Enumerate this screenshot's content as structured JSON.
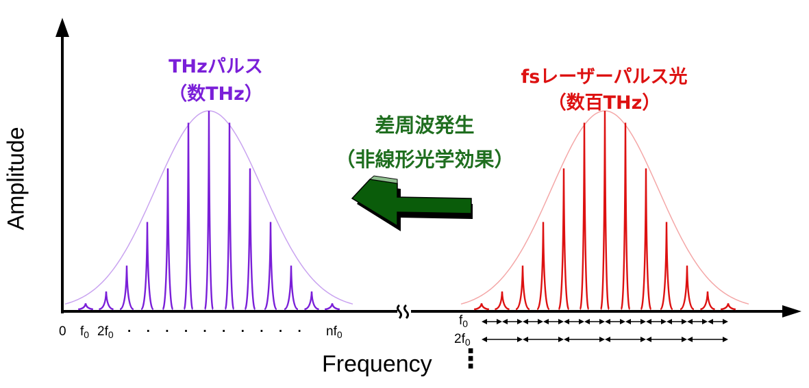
{
  "colors": {
    "thz": "#7a1fd8",
    "thz_envelope": "#c9a3f0",
    "fs": "#dd1111",
    "fs_envelope": "#f4a7a7",
    "dfg": "#1f6e1f",
    "arrow_fill": "#0a5c0a",
    "arrow_shadow": "#000000",
    "axis": "#000000"
  },
  "y_axis_label": "Amplitude",
  "x_axis_label": "Frequency",
  "thz_pulse": {
    "title_line1": "THzパルス",
    "title_line2": "（数THz）",
    "tick_zero": "0",
    "tick_f0": "f",
    "tick_f0_sub": "0",
    "tick_2f0": "2f",
    "tick_2f0_sub": "0",
    "tick_ellipsis": "· · · · · · · · · ·",
    "tick_nf0": "nf",
    "tick_nf0_sub": "0",
    "comb_amplitudes": [
      0.03,
      0.09,
      0.22,
      0.44,
      0.71,
      0.94,
      1.0,
      0.94,
      0.71,
      0.44,
      0.22,
      0.09,
      0.03
    ]
  },
  "fs_pulse": {
    "title_line1": "fsレーザーパルス光",
    "title_line2": "（数百THz）",
    "spacing_f0": "f",
    "spacing_f0_sub": "0",
    "spacing_2f0": "2f",
    "spacing_2f0_sub": "0",
    "comb_amplitudes": [
      0.03,
      0.09,
      0.22,
      0.44,
      0.71,
      0.94,
      1.0,
      0.94,
      0.71,
      0.44,
      0.22,
      0.09,
      0.03
    ]
  },
  "process": {
    "title_line1": "差周波発生",
    "title_line2": "（非線形光学効果）",
    "arrow_icon": "left-arrow-icon"
  },
  "axis_break_icon": "axis-break-icon",
  "vertical_ellipsis": "⋮"
}
